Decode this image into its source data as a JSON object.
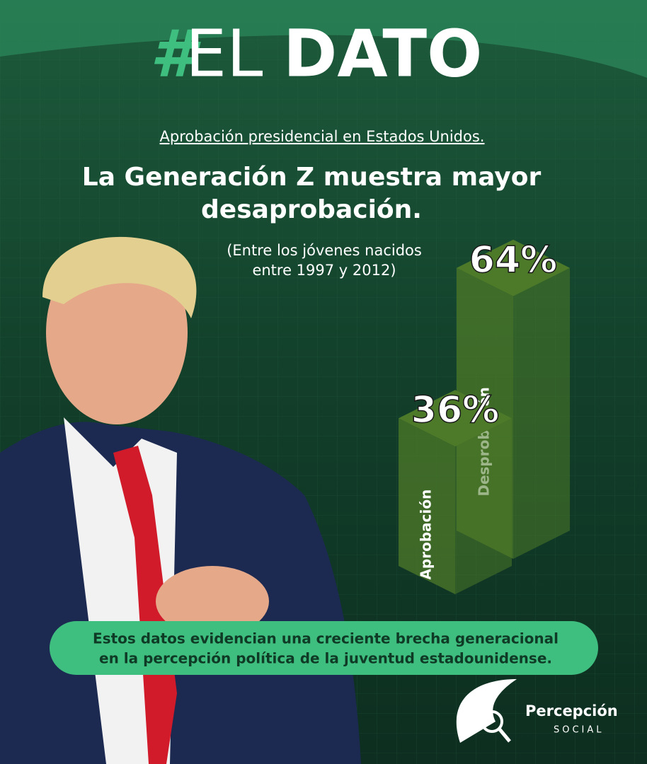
{
  "logo": {
    "hash": "#",
    "light": "EL",
    "bold": "DATO"
  },
  "chart_data": {
    "type": "bar",
    "subtitle": "Aprobación presidencial en Estados Unidos.",
    "title_lines": [
      "La Generación Z muestra mayor",
      "desaprobación."
    ],
    "note_lines": [
      "(Entre los jóvenes nacidos",
      "entre 1997 y 2012)"
    ],
    "categories": [
      "Aprobación",
      "Desprobación"
    ],
    "values": [
      36,
      64
    ],
    "value_labels": [
      "36%",
      "64%"
    ],
    "color": "#4d7a28"
  },
  "callout_lines": [
    "Estos datos evidencian una creciente brecha generacional",
    "en la percepción política de la juventud estadounidense."
  ],
  "brand": {
    "name": "Percepción",
    "tag": "SOCIAL"
  }
}
